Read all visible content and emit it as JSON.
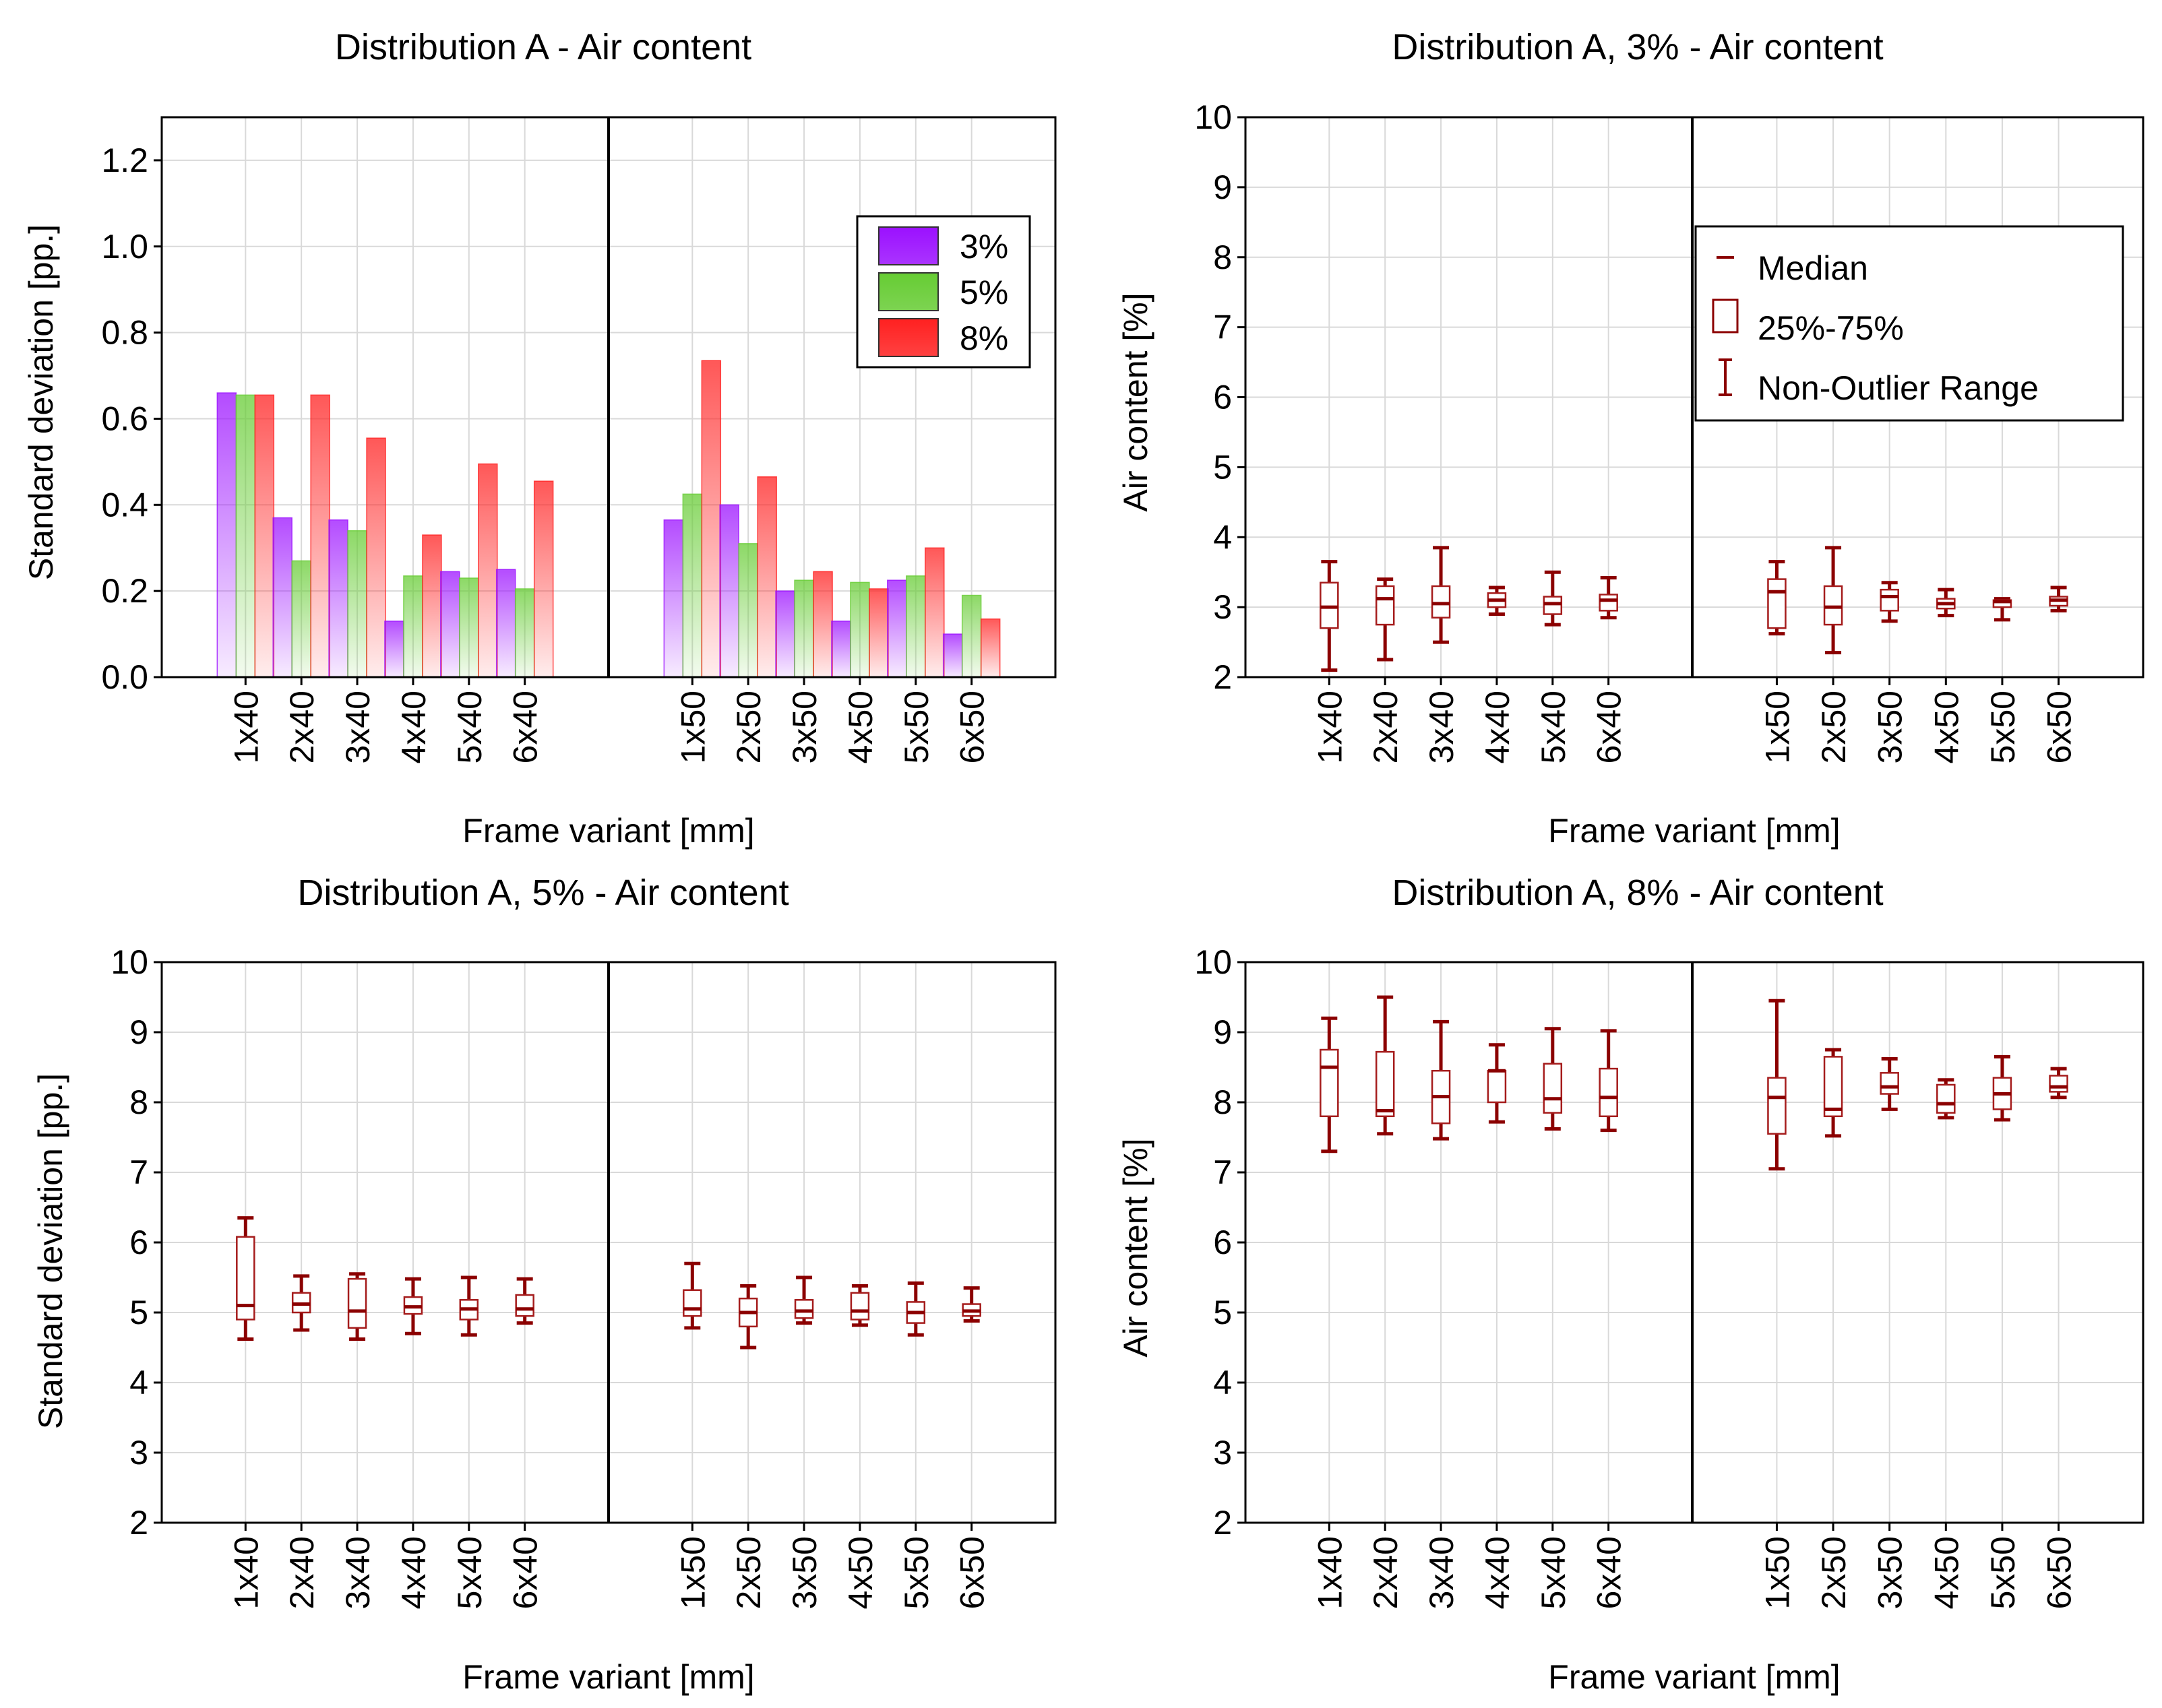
{
  "colors": {
    "c3": "#9b10ff",
    "c5": "#66cc33",
    "c8": "#ff2020",
    "box_stroke": "#a51c1c",
    "whisker": "#8b0000"
  },
  "legends": {
    "bar": [
      "3%",
      "5%",
      "8%"
    ],
    "box": [
      "Median",
      "25%-75%",
      "Non-Outlier Range"
    ]
  },
  "chart_data": [
    {
      "id": "bar",
      "type": "bar",
      "title": "Distribution A - Air content",
      "xlabel": "Frame variant [mm]",
      "ylabel": "Standard deviation [pp.]",
      "ylim": [
        0,
        1.3
      ],
      "yticks": [
        "0.0",
        "0.2",
        "0.4",
        "0.6",
        "0.8",
        "1.0",
        "1.2"
      ],
      "groups": [
        {
          "name": "40",
          "categories": [
            "1x40",
            "2x40",
            "3x40",
            "4x40",
            "5x40",
            "6x40"
          ]
        },
        {
          "name": "50",
          "categories": [
            "1x50",
            "2x50",
            "3x50",
            "4x50",
            "5x50",
            "6x50"
          ]
        }
      ],
      "series": [
        {
          "name": "3%",
          "values": [
            [
              0.66,
              0.37,
              0.365,
              0.13,
              0.245,
              0.25
            ],
            [
              0.365,
              0.4,
              0.2,
              0.13,
              0.225,
              0.1
            ]
          ]
        },
        {
          "name": "5%",
          "values": [
            [
              0.655,
              0.27,
              0.34,
              0.235,
              0.23,
              0.205
            ],
            [
              0.425,
              0.31,
              0.225,
              0.22,
              0.235,
              0.19
            ]
          ]
        },
        {
          "name": "8%",
          "values": [
            [
              0.655,
              0.655,
              0.555,
              0.33,
              0.495,
              0.455
            ],
            [
              0.735,
              0.465,
              0.245,
              0.205,
              0.3,
              0.135
            ]
          ]
        }
      ]
    },
    {
      "id": "box3",
      "type": "box",
      "title": "Distribution A, 3% - Air content",
      "xlabel": "Frame variant [mm]",
      "ylabel": "Air content [%]",
      "ylim": [
        2,
        10
      ],
      "yticks": [
        "2",
        "3",
        "4",
        "5",
        "6",
        "7",
        "8",
        "9",
        "10"
      ],
      "show_legend": true,
      "groups": [
        {
          "name": "40",
          "categories": [
            "1x40",
            "2x40",
            "3x40",
            "4x40",
            "5x40",
            "6x40"
          ],
          "stats": [
            {
              "min": 2.1,
              "q1": 2.7,
              "median": 3.0,
              "q3": 3.35,
              "max": 3.65
            },
            {
              "min": 2.25,
              "q1": 2.75,
              "median": 3.12,
              "q3": 3.3,
              "max": 3.4
            },
            {
              "min": 2.5,
              "q1": 2.85,
              "median": 3.05,
              "q3": 3.3,
              "max": 3.85
            },
            {
              "min": 2.9,
              "q1": 3.0,
              "median": 3.1,
              "q3": 3.2,
              "max": 3.28
            },
            {
              "min": 2.75,
              "q1": 2.9,
              "median": 3.05,
              "q3": 3.15,
              "max": 3.5
            },
            {
              "min": 2.85,
              "q1": 2.95,
              "median": 3.1,
              "q3": 3.18,
              "max": 3.42
            }
          ]
        },
        {
          "name": "50",
          "categories": [
            "1x50",
            "2x50",
            "3x50",
            "4x50",
            "5x50",
            "6x50"
          ],
          "stats": [
            {
              "min": 2.62,
              "q1": 2.7,
              "median": 3.22,
              "q3": 3.4,
              "max": 3.65
            },
            {
              "min": 2.35,
              "q1": 2.75,
              "median": 3.0,
              "q3": 3.3,
              "max": 3.85
            },
            {
              "min": 2.8,
              "q1": 2.95,
              "median": 3.15,
              "q3": 3.25,
              "max": 3.35
            },
            {
              "min": 2.88,
              "q1": 2.98,
              "median": 3.05,
              "q3": 3.12,
              "max": 3.25
            },
            {
              "min": 2.82,
              "q1": 3.0,
              "median": 3.08,
              "q3": 3.1,
              "max": 3.12
            },
            {
              "min": 2.95,
              "q1": 3.02,
              "median": 3.1,
              "q3": 3.15,
              "max": 3.28
            }
          ]
        }
      ]
    },
    {
      "id": "box5",
      "type": "box",
      "title": "Distribution A, 5% - Air content",
      "xlabel": "Frame variant [mm]",
      "ylabel": "Standard deviation [pp.]",
      "ylim": [
        2,
        10
      ],
      "yticks": [
        "2",
        "3",
        "4",
        "5",
        "6",
        "7",
        "8",
        "9",
        "10"
      ],
      "show_legend": false,
      "groups": [
        {
          "name": "40",
          "categories": [
            "1x40",
            "2x40",
            "3x40",
            "4x40",
            "5x40",
            "6x40"
          ],
          "stats": [
            {
              "min": 4.62,
              "q1": 4.9,
              "median": 5.1,
              "q3": 6.08,
              "max": 6.35
            },
            {
              "min": 4.75,
              "q1": 5.0,
              "median": 5.12,
              "q3": 5.28,
              "max": 5.52
            },
            {
              "min": 4.62,
              "q1": 4.78,
              "median": 5.02,
              "q3": 5.48,
              "max": 5.55
            },
            {
              "min": 4.7,
              "q1": 4.98,
              "median": 5.08,
              "q3": 5.22,
              "max": 5.48
            },
            {
              "min": 4.68,
              "q1": 4.9,
              "median": 5.05,
              "q3": 5.18,
              "max": 5.5
            },
            {
              "min": 4.85,
              "q1": 4.95,
              "median": 5.05,
              "q3": 5.25,
              "max": 5.48
            }
          ]
        },
        {
          "name": "50",
          "categories": [
            "1x50",
            "2x50",
            "3x50",
            "4x50",
            "5x50",
            "6x50"
          ],
          "stats": [
            {
              "min": 4.78,
              "q1": 4.95,
              "median": 5.05,
              "q3": 5.32,
              "max": 5.7
            },
            {
              "min": 4.5,
              "q1": 4.8,
              "median": 5.0,
              "q3": 5.2,
              "max": 5.38
            },
            {
              "min": 4.85,
              "q1": 4.92,
              "median": 5.02,
              "q3": 5.18,
              "max": 5.5
            },
            {
              "min": 4.82,
              "q1": 4.9,
              "median": 5.02,
              "q3": 5.28,
              "max": 5.38
            },
            {
              "min": 4.68,
              "q1": 4.85,
              "median": 5.0,
              "q3": 5.15,
              "max": 5.42
            },
            {
              "min": 4.88,
              "q1": 4.95,
              "median": 5.02,
              "q3": 5.12,
              "max": 5.35
            }
          ]
        }
      ]
    },
    {
      "id": "box8",
      "type": "box",
      "title": "Distribution A, 8% - Air content",
      "xlabel": "Frame variant [mm]",
      "ylabel": "Air content [%]",
      "ylim": [
        2,
        10
      ],
      "yticks": [
        "2",
        "3",
        "4",
        "5",
        "6",
        "7",
        "8",
        "9",
        "10"
      ],
      "show_legend": false,
      "groups": [
        {
          "name": "40",
          "categories": [
            "1x40",
            "2x40",
            "3x40",
            "4x40",
            "5x40",
            "6x40"
          ],
          "stats": [
            {
              "min": 7.3,
              "q1": 7.8,
              "median": 8.5,
              "q3": 8.75,
              "max": 9.2
            },
            {
              "min": 7.55,
              "q1": 7.8,
              "median": 7.88,
              "q3": 8.72,
              "max": 9.5
            },
            {
              "min": 7.48,
              "q1": 7.7,
              "median": 8.08,
              "q3": 8.45,
              "max": 9.15
            },
            {
              "min": 7.72,
              "q1": 8.0,
              "median": 8.45,
              "q3": 8.45,
              "max": 8.82
            },
            {
              "min": 7.62,
              "q1": 7.85,
              "median": 8.05,
              "q3": 8.55,
              "max": 9.05
            },
            {
              "min": 7.6,
              "q1": 7.8,
              "median": 8.07,
              "q3": 8.48,
              "max": 9.02
            }
          ]
        },
        {
          "name": "50",
          "categories": [
            "1x50",
            "2x50",
            "3x50",
            "4x50",
            "5x50",
            "6x50"
          ],
          "stats": [
            {
              "min": 7.05,
              "q1": 7.55,
              "median": 8.07,
              "q3": 8.35,
              "max": 9.45
            },
            {
              "min": 7.52,
              "q1": 7.8,
              "median": 7.9,
              "q3": 8.65,
              "max": 8.75
            },
            {
              "min": 7.9,
              "q1": 8.12,
              "median": 8.22,
              "q3": 8.42,
              "max": 8.62
            },
            {
              "min": 7.78,
              "q1": 7.85,
              "median": 7.98,
              "q3": 8.25,
              "max": 8.32
            },
            {
              "min": 7.75,
              "q1": 7.9,
              "median": 8.12,
              "q3": 8.35,
              "max": 8.65
            },
            {
              "min": 8.07,
              "q1": 8.15,
              "median": 8.22,
              "q3": 8.38,
              "max": 8.48
            }
          ]
        }
      ]
    }
  ]
}
